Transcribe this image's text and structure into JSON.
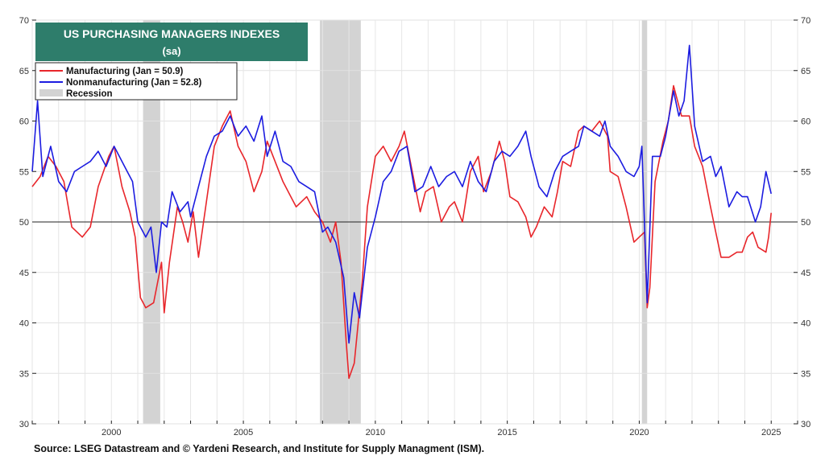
{
  "chart_data": {
    "type": "line",
    "title": "US PURCHASING MANAGERS INDEXES",
    "subtitle": "(sa)",
    "ylim": [
      30,
      70
    ],
    "y_ticks": [
      30,
      35,
      40,
      45,
      50,
      55,
      60,
      65,
      70
    ],
    "x_ticks": [
      2000,
      2005,
      2010,
      2015,
      2020,
      2025
    ],
    "xlim": [
      1997.0,
      2026.0
    ],
    "reference_line": 50,
    "grid": true,
    "legend_position": "top-left",
    "colors": {
      "manufacturing": "#e8262b",
      "nonmanufacturing": "#1c1ce0",
      "recession": "#d3d3d3",
      "title_bg": "#2e7d6b"
    },
    "legend": [
      {
        "label": "Manufacturing (Jan = 50.9)",
        "color": "#e8262b",
        "kind": "line"
      },
      {
        "label": "Nonmanufacturing  (Jan = 52.8)",
        "color": "#1c1ce0",
        "kind": "line"
      },
      {
        "label": "Recession",
        "color": "#d3d3d3",
        "kind": "box"
      }
    ],
    "recessions": [
      [
        2001.2,
        2001.85
      ],
      [
        2007.9,
        2009.45
      ],
      [
        2020.1,
        2020.3
      ]
    ],
    "series": [
      {
        "name": "Manufacturing",
        "color": "#e8262b",
        "points": [
          [
            1997.0,
            53.5
          ],
          [
            1997.3,
            54.5
          ],
          [
            1997.6,
            56.5
          ],
          [
            1997.9,
            55.5
          ],
          [
            1998.2,
            54.0
          ],
          [
            1998.5,
            49.5
          ],
          [
            1998.9,
            48.5
          ],
          [
            1999.2,
            49.5
          ],
          [
            1999.5,
            53.5
          ],
          [
            1999.9,
            56.5
          ],
          [
            2000.1,
            57.5
          ],
          [
            2000.4,
            53.5
          ],
          [
            2000.7,
            51.0
          ],
          [
            2000.9,
            48.5
          ],
          [
            2001.1,
            42.5
          ],
          [
            2001.3,
            41.5
          ],
          [
            2001.6,
            42.0
          ],
          [
            2001.9,
            46.0
          ],
          [
            2002.0,
            41.0
          ],
          [
            2002.2,
            46.0
          ],
          [
            2002.5,
            51.5
          ],
          [
            2002.7,
            50.0
          ],
          [
            2002.9,
            48.0
          ],
          [
            2003.1,
            51.0
          ],
          [
            2003.3,
            46.5
          ],
          [
            2003.6,
            52.0
          ],
          [
            2003.9,
            57.5
          ],
          [
            2004.2,
            59.5
          ],
          [
            2004.5,
            61.0
          ],
          [
            2004.8,
            57.5
          ],
          [
            2005.1,
            56.0
          ],
          [
            2005.4,
            53.0
          ],
          [
            2005.7,
            55.0
          ],
          [
            2005.9,
            58.0
          ],
          [
            2006.2,
            56.0
          ],
          [
            2006.5,
            54.0
          ],
          [
            2006.8,
            52.5
          ],
          [
            2007.0,
            51.5
          ],
          [
            2007.4,
            52.5
          ],
          [
            2007.7,
            51.0
          ],
          [
            2008.0,
            50.0
          ],
          [
            2008.3,
            48.0
          ],
          [
            2008.5,
            50.0
          ],
          [
            2008.7,
            46.0
          ],
          [
            2008.9,
            38.0
          ],
          [
            2009.0,
            34.5
          ],
          [
            2009.2,
            36.0
          ],
          [
            2009.5,
            44.0
          ],
          [
            2009.7,
            51.5
          ],
          [
            2010.0,
            56.5
          ],
          [
            2010.3,
            57.5
          ],
          [
            2010.6,
            56.0
          ],
          [
            2010.9,
            57.5
          ],
          [
            2011.1,
            59.0
          ],
          [
            2011.4,
            55.0
          ],
          [
            2011.7,
            51.0
          ],
          [
            2011.9,
            53.0
          ],
          [
            2012.2,
            53.5
          ],
          [
            2012.5,
            50.0
          ],
          [
            2012.8,
            51.5
          ],
          [
            2013.0,
            52.0
          ],
          [
            2013.3,
            50.0
          ],
          [
            2013.6,
            55.0
          ],
          [
            2013.9,
            56.5
          ],
          [
            2014.1,
            53.0
          ],
          [
            2014.4,
            55.0
          ],
          [
            2014.7,
            58.0
          ],
          [
            2014.9,
            56.0
          ],
          [
            2015.1,
            52.5
          ],
          [
            2015.4,
            52.0
          ],
          [
            2015.7,
            50.5
          ],
          [
            2015.9,
            48.5
          ],
          [
            2016.1,
            49.5
          ],
          [
            2016.4,
            51.5
          ],
          [
            2016.7,
            50.5
          ],
          [
            2016.9,
            53.0
          ],
          [
            2017.1,
            56.0
          ],
          [
            2017.4,
            55.5
          ],
          [
            2017.7,
            59.0
          ],
          [
            2017.9,
            59.5
          ],
          [
            2018.2,
            59.0
          ],
          [
            2018.5,
            60.0
          ],
          [
            2018.8,
            58.5
          ],
          [
            2018.9,
            55.0
          ],
          [
            2019.2,
            54.5
          ],
          [
            2019.5,
            51.5
          ],
          [
            2019.8,
            48.0
          ],
          [
            2020.0,
            48.5
          ],
          [
            2020.2,
            49.0
          ],
          [
            2020.3,
            41.5
          ],
          [
            2020.4,
            43.5
          ],
          [
            2020.6,
            54.0
          ],
          [
            2020.9,
            58.0
          ],
          [
            2021.1,
            60.0
          ],
          [
            2021.3,
            63.5
          ],
          [
            2021.6,
            60.5
          ],
          [
            2021.9,
            60.5
          ],
          [
            2022.1,
            57.5
          ],
          [
            2022.4,
            55.5
          ],
          [
            2022.7,
            51.5
          ],
          [
            2022.9,
            49.0
          ],
          [
            2023.1,
            46.5
          ],
          [
            2023.4,
            46.5
          ],
          [
            2023.7,
            47.0
          ],
          [
            2023.9,
            47.0
          ],
          [
            2024.1,
            48.5
          ],
          [
            2024.3,
            49.0
          ],
          [
            2024.5,
            47.5
          ],
          [
            2024.8,
            47.0
          ],
          [
            2024.9,
            48.5
          ],
          [
            2025.0,
            50.9
          ]
        ]
      },
      {
        "name": "Nonmanufacturing",
        "color": "#1c1ce0",
        "points": [
          [
            1997.0,
            55.0
          ],
          [
            1997.2,
            62.0
          ],
          [
            1997.4,
            54.5
          ],
          [
            1997.7,
            57.5
          ],
          [
            1998.0,
            54.0
          ],
          [
            1998.3,
            53.0
          ],
          [
            1998.6,
            55.0
          ],
          [
            1998.9,
            55.5
          ],
          [
            1999.2,
            56.0
          ],
          [
            1999.5,
            57.0
          ],
          [
            1999.8,
            55.5
          ],
          [
            2000.1,
            57.5
          ],
          [
            2000.3,
            56.5
          ],
          [
            2000.6,
            55.0
          ],
          [
            2000.8,
            54.0
          ],
          [
            2001.0,
            50.0
          ],
          [
            2001.3,
            48.5
          ],
          [
            2001.5,
            49.5
          ],
          [
            2001.7,
            45.0
          ],
          [
            2001.9,
            50.0
          ],
          [
            2002.1,
            49.5
          ],
          [
            2002.3,
            53.0
          ],
          [
            2002.6,
            51.0
          ],
          [
            2002.9,
            52.0
          ],
          [
            2003.0,
            50.5
          ],
          [
            2003.3,
            53.5
          ],
          [
            2003.6,
            56.5
          ],
          [
            2003.9,
            58.5
          ],
          [
            2004.2,
            59.0
          ],
          [
            2004.5,
            60.5
          ],
          [
            2004.8,
            58.5
          ],
          [
            2005.1,
            59.5
          ],
          [
            2005.4,
            58.0
          ],
          [
            2005.7,
            60.5
          ],
          [
            2005.9,
            56.5
          ],
          [
            2006.2,
            59.0
          ],
          [
            2006.5,
            56.0
          ],
          [
            2006.8,
            55.5
          ],
          [
            2007.1,
            54.0
          ],
          [
            2007.4,
            53.5
          ],
          [
            2007.7,
            53.0
          ],
          [
            2008.0,
            49.0
          ],
          [
            2008.2,
            49.5
          ],
          [
            2008.5,
            48.0
          ],
          [
            2008.8,
            44.5
          ],
          [
            2009.0,
            38.0
          ],
          [
            2009.2,
            43.0
          ],
          [
            2009.4,
            40.5
          ],
          [
            2009.7,
            47.5
          ],
          [
            2010.0,
            50.5
          ],
          [
            2010.3,
            54.0
          ],
          [
            2010.6,
            55.0
          ],
          [
            2010.9,
            57.0
          ],
          [
            2011.2,
            57.5
          ],
          [
            2011.5,
            53.0
          ],
          [
            2011.8,
            53.5
          ],
          [
            2012.1,
            55.5
          ],
          [
            2012.4,
            53.5
          ],
          [
            2012.7,
            54.5
          ],
          [
            2013.0,
            55.0
          ],
          [
            2013.3,
            53.5
          ],
          [
            2013.6,
            56.0
          ],
          [
            2013.9,
            54.0
          ],
          [
            2014.2,
            53.0
          ],
          [
            2014.5,
            56.0
          ],
          [
            2014.8,
            57.0
          ],
          [
            2015.1,
            56.5
          ],
          [
            2015.4,
            57.5
          ],
          [
            2015.7,
            59.0
          ],
          [
            2015.9,
            56.5
          ],
          [
            2016.2,
            53.5
          ],
          [
            2016.5,
            52.5
          ],
          [
            2016.8,
            55.0
          ],
          [
            2017.1,
            56.5
          ],
          [
            2017.4,
            57.0
          ],
          [
            2017.7,
            57.5
          ],
          [
            2017.9,
            59.5
          ],
          [
            2018.2,
            59.0
          ],
          [
            2018.5,
            58.5
          ],
          [
            2018.7,
            60.0
          ],
          [
            2018.9,
            57.5
          ],
          [
            2019.2,
            56.5
          ],
          [
            2019.5,
            55.0
          ],
          [
            2019.8,
            54.5
          ],
          [
            2020.0,
            55.5
          ],
          [
            2020.1,
            57.5
          ],
          [
            2020.3,
            42.0
          ],
          [
            2020.5,
            56.5
          ],
          [
            2020.8,
            56.5
          ],
          [
            2021.0,
            58.5
          ],
          [
            2021.3,
            63.0
          ],
          [
            2021.5,
            60.5
          ],
          [
            2021.7,
            62.0
          ],
          [
            2021.9,
            67.5
          ],
          [
            2022.1,
            59.5
          ],
          [
            2022.4,
            56.0
          ],
          [
            2022.7,
            56.5
          ],
          [
            2022.9,
            54.5
          ],
          [
            2023.1,
            55.5
          ],
          [
            2023.4,
            51.5
          ],
          [
            2023.7,
            53.0
          ],
          [
            2023.9,
            52.5
          ],
          [
            2024.1,
            52.5
          ],
          [
            2024.4,
            50.0
          ],
          [
            2024.6,
            51.5
          ],
          [
            2024.8,
            55.0
          ],
          [
            2025.0,
            52.8
          ]
        ]
      }
    ],
    "source": "Source: LSEG Datastream and © Yardeni Research, and Institute for Supply Managment (ISM)."
  }
}
